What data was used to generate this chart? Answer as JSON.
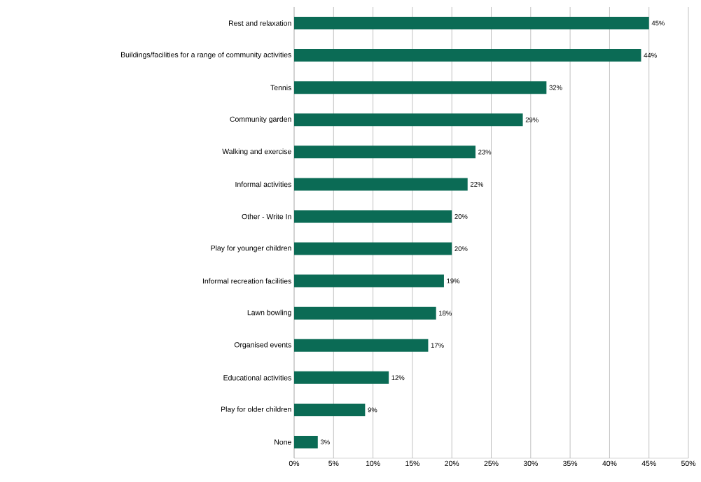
{
  "chart_data": {
    "type": "bar",
    "orientation": "horizontal",
    "categories": [
      "Rest and relaxation",
      "Buildings/facilities for a range of community activities",
      "Tennis",
      "Community garden",
      "Walking and exercise",
      "Informal activities",
      "Other - Write In",
      "Play for younger children",
      "Informal recreation facilities",
      "Lawn bowling",
      "Organised events",
      "Educational activities",
      "Play for older children",
      "None"
    ],
    "values": [
      45,
      44,
      32,
      29,
      23,
      22,
      20,
      20,
      19,
      18,
      17,
      12,
      9,
      3
    ],
    "value_labels": [
      "45%",
      "44%",
      "32%",
      "29%",
      "23%",
      "22%",
      "20%",
      "20%",
      "19%",
      "18%",
      "17%",
      "12%",
      "9%",
      "3%"
    ],
    "color": "#0b6b55",
    "xlim": [
      0,
      50
    ],
    "xticks": [
      {
        "value": 0,
        "label": "0%"
      },
      {
        "value": 5,
        "label": "5%"
      },
      {
        "value": 10,
        "label": "10%"
      },
      {
        "value": 15,
        "label": "15%"
      },
      {
        "value": 20,
        "label": "20%"
      },
      {
        "value": 25,
        "label": "25%"
      },
      {
        "value": 30,
        "label": "30%"
      },
      {
        "value": 35,
        "label": "35%"
      },
      {
        "value": 40,
        "label": "40%"
      },
      {
        "value": 45,
        "label": "45%"
      },
      {
        "value": 50,
        "label": "50%"
      }
    ],
    "grid": "x"
  }
}
